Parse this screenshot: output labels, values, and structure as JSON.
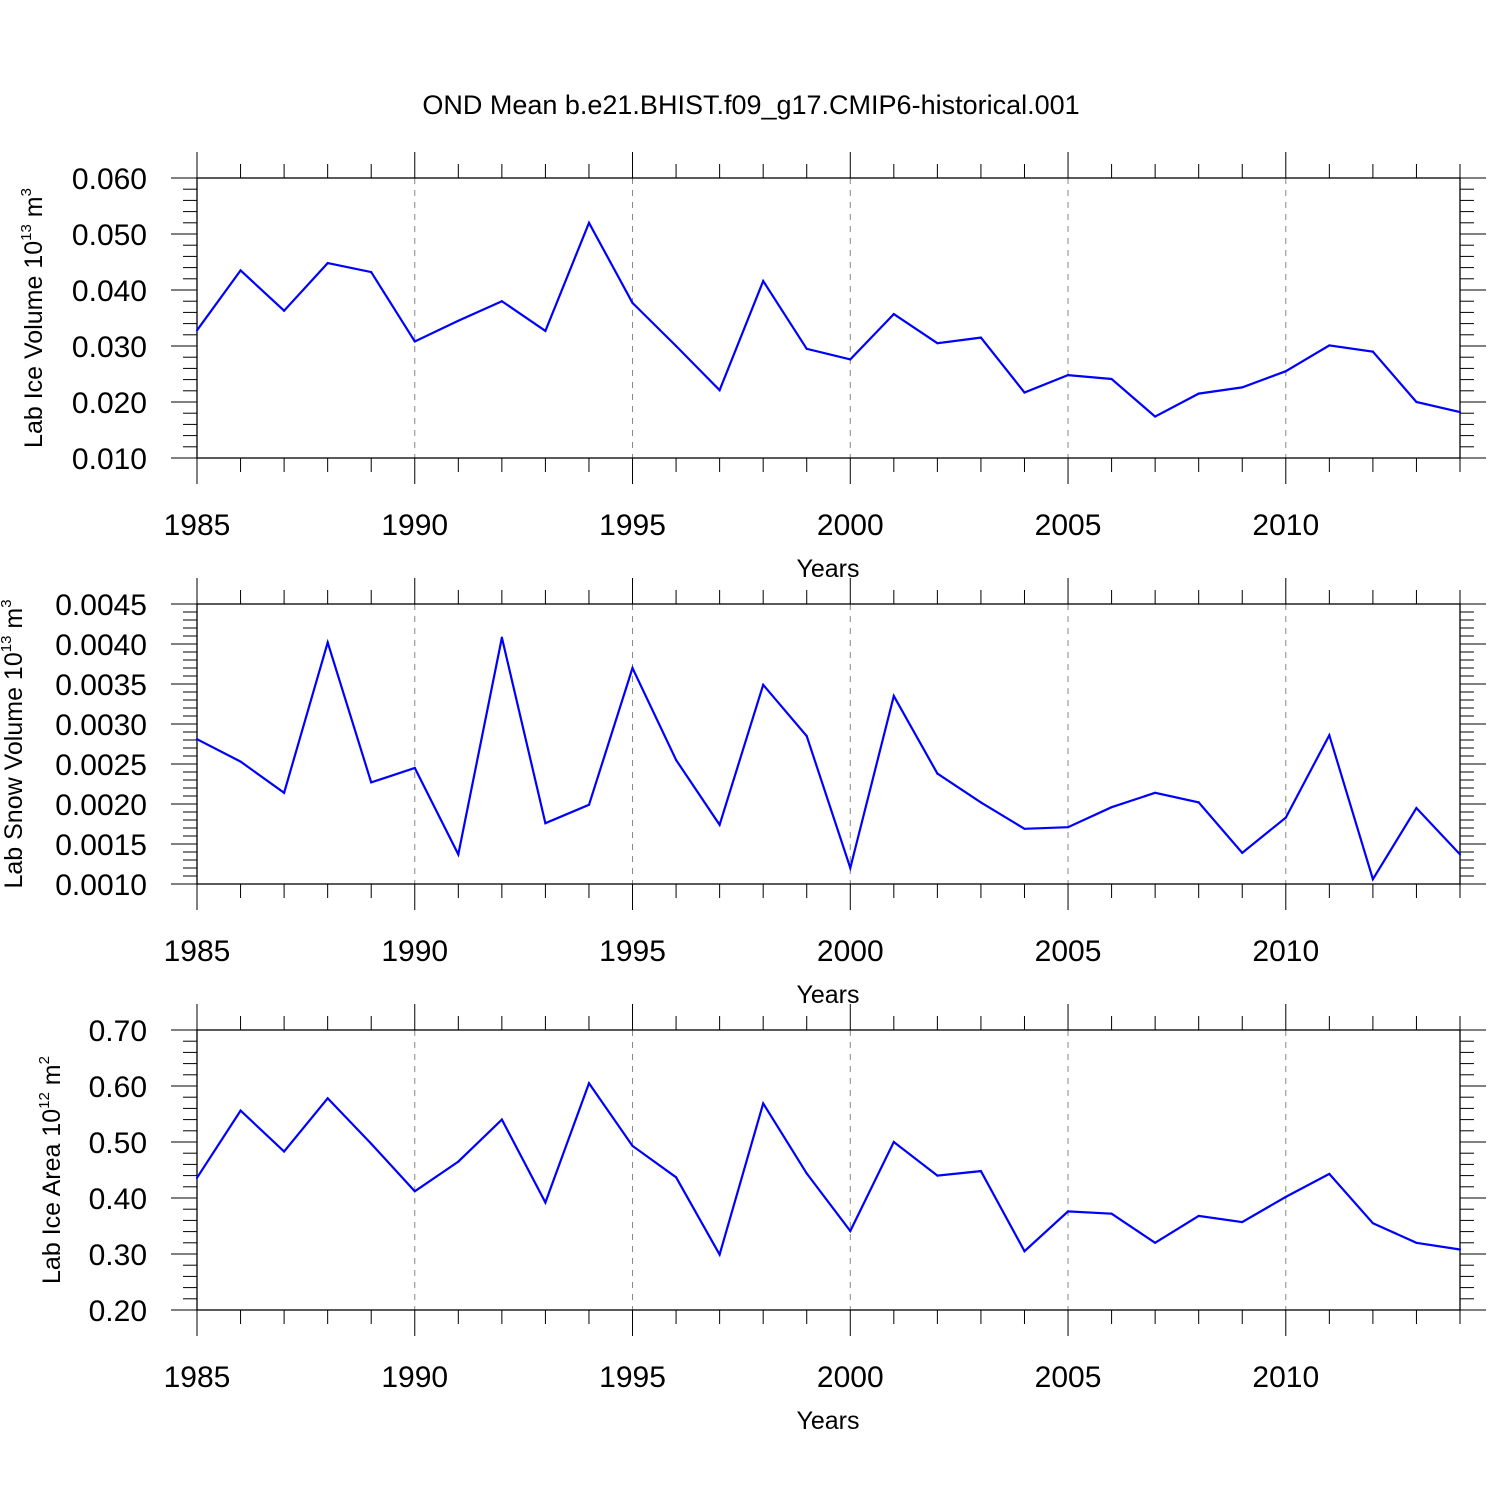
{
  "title": "OND Mean b.e21.BHIST.f09_g17.CMIP6-historical.001",
  "colors": {
    "line": "#0000ff",
    "axis": "#000000",
    "grid": "#888888"
  },
  "chart_data": [
    {
      "type": "line",
      "title": "OND Mean b.e21.BHIST.f09_g17.CMIP6-historical.001",
      "xlabel": "Years",
      "ylabel_main": "Lab Ice Volume 10",
      "ylabel_exp": "13",
      "ylabel_unit": " m",
      "ylabel_unit_exp": "3",
      "xlim": [
        1985,
        2014
      ],
      "ylim": [
        0.01,
        0.06
      ],
      "yticks": [
        0.01,
        0.02,
        0.03,
        0.04,
        0.05,
        0.06
      ],
      "ytick_labels": [
        "0.010",
        "0.020",
        "0.030",
        "0.040",
        "0.050",
        "0.060"
      ],
      "xticks": [
        1985,
        1990,
        1995,
        2000,
        2005,
        2010
      ],
      "xtick_labels": [
        "1985",
        "1990",
        "1995",
        "2000",
        "2005",
        "2010"
      ],
      "x": [
        1985,
        1986,
        1987,
        1988,
        1989,
        1990,
        1991,
        1992,
        1993,
        1994,
        1995,
        1996,
        1997,
        1998,
        1999,
        2000,
        2001,
        2002,
        2003,
        2004,
        2005,
        2006,
        2007,
        2008,
        2009,
        2010,
        2011,
        2012,
        2013,
        2014
      ],
      "values": [
        0.0328,
        0.0435,
        0.0363,
        0.0448,
        0.0432,
        0.0308,
        0.0345,
        0.038,
        0.0327,
        0.052,
        0.0377,
        0.03,
        0.0221,
        0.0416,
        0.0295,
        0.0276,
        0.0357,
        0.0305,
        0.0315,
        0.0217,
        0.0248,
        0.0241,
        0.0174,
        0.0215,
        0.0226,
        0.0255,
        0.0301,
        0.029,
        0.02,
        0.0182
      ]
    },
    {
      "type": "line",
      "xlabel": "Years",
      "ylabel_main": "Lab Snow Volume 10",
      "ylabel_exp": "13",
      "ylabel_unit": " m",
      "ylabel_unit_exp": "3",
      "xlim": [
        1985,
        2014
      ],
      "ylim": [
        0.001,
        0.0045
      ],
      "yticks": [
        0.001,
        0.0015,
        0.002,
        0.0025,
        0.003,
        0.0035,
        0.004,
        0.0045
      ],
      "ytick_labels": [
        "0.0010",
        "0.0015",
        "0.0020",
        "0.0025",
        "0.0030",
        "0.0035",
        "0.0040",
        "0.0045"
      ],
      "xticks": [
        1985,
        1990,
        1995,
        2000,
        2005,
        2010
      ],
      "xtick_labels": [
        "1985",
        "1990",
        "1995",
        "2000",
        "2005",
        "2010"
      ],
      "x": [
        1985,
        1986,
        1987,
        1988,
        1989,
        1990,
        1991,
        1992,
        1993,
        1994,
        1995,
        1996,
        1997,
        1998,
        1999,
        2000,
        2001,
        2002,
        2003,
        2004,
        2005,
        2006,
        2007,
        2008,
        2009,
        2010,
        2011,
        2012,
        2013,
        2014
      ],
      "values": [
        0.00281,
        0.00253,
        0.00214,
        0.00402,
        0.00227,
        0.00245,
        0.00137,
        0.00408,
        0.00176,
        0.00199,
        0.0037,
        0.00255,
        0.00174,
        0.00349,
        0.00285,
        0.0012,
        0.00335,
        0.00238,
        0.00202,
        0.00169,
        0.00171,
        0.00196,
        0.00214,
        0.00202,
        0.00139,
        0.00183,
        0.00286,
        0.00106,
        0.00195,
        0.00137
      ]
    },
    {
      "type": "line",
      "xlabel": "Years",
      "ylabel_main": "Lab Ice Area 10",
      "ylabel_exp": "12",
      "ylabel_unit": " m",
      "ylabel_unit_exp": "2",
      "xlim": [
        1985,
        2014
      ],
      "ylim": [
        0.2,
        0.7
      ],
      "yticks": [
        0.2,
        0.3,
        0.4,
        0.5,
        0.6,
        0.7
      ],
      "ytick_labels": [
        "0.20",
        "0.30",
        "0.40",
        "0.50",
        "0.60",
        "0.70"
      ],
      "xticks": [
        1985,
        1990,
        1995,
        2000,
        2005,
        2010
      ],
      "xtick_labels": [
        "1985",
        "1990",
        "1995",
        "2000",
        "2005",
        "2010"
      ],
      "x": [
        1985,
        1986,
        1987,
        1988,
        1989,
        1990,
        1991,
        1992,
        1993,
        1994,
        1995,
        1996,
        1997,
        1998,
        1999,
        2000,
        2001,
        2002,
        2003,
        2004,
        2005,
        2006,
        2007,
        2008,
        2009,
        2010,
        2011,
        2012,
        2013,
        2014
      ],
      "values": [
        0.436,
        0.556,
        0.483,
        0.578,
        0.497,
        0.412,
        0.465,
        0.54,
        0.392,
        0.605,
        0.493,
        0.437,
        0.299,
        0.569,
        0.444,
        0.341,
        0.5,
        0.44,
        0.448,
        0.305,
        0.376,
        0.372,
        0.32,
        0.368,
        0.357,
        0.402,
        0.443,
        0.355,
        0.32,
        0.308
      ]
    }
  ]
}
